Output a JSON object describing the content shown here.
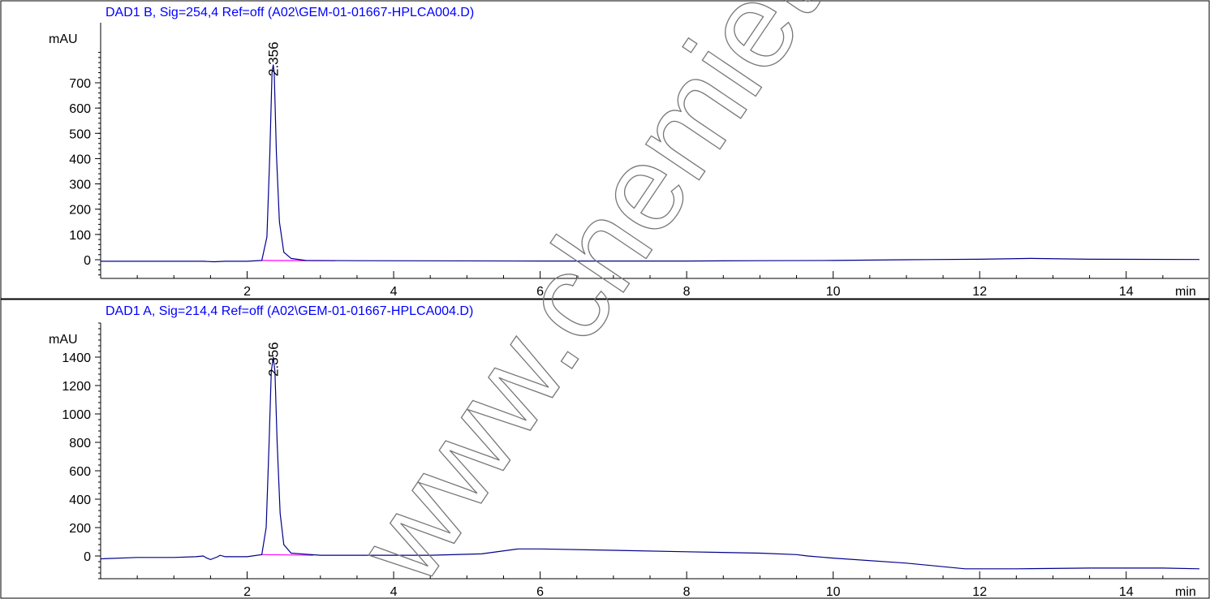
{
  "watermark": "www.chemietek.com",
  "colors": {
    "trace": "#00008b",
    "baseline": "#ff00ff",
    "title": "#0000ff",
    "axis": "#000000"
  },
  "chart_data": [
    {
      "type": "line",
      "title": "DAD1 B, Sig=254,4 Ref=off (A02\\GEM-01-01667-HPLCA004.D)",
      "ylabel": "mAU",
      "xlabel": "min",
      "xlim": [
        0,
        15
      ],
      "ylim": [
        -35,
        890
      ],
      "x_ticks": [
        2,
        4,
        6,
        8,
        10,
        12,
        14
      ],
      "y_ticks": [
        0,
        100,
        200,
        300,
        400,
        500,
        600,
        700
      ],
      "peak_label": "2.356",
      "peak_rt": 2.356,
      "series": [
        {
          "x": [
            0,
            1.2,
            1.4,
            1.55,
            1.7,
            2.0,
            2.2,
            2.27,
            2.31,
            2.34,
            2.356,
            2.37,
            2.4,
            2.44,
            2.5,
            2.6,
            2.8,
            3.5,
            6,
            8,
            9,
            10,
            11,
            12,
            12.7,
            13.5,
            15
          ],
          "y": [
            -6,
            -6,
            -6,
            -8,
            -6,
            -6,
            -3,
            90,
            420,
            740,
            772,
            740,
            420,
            150,
            30,
            5,
            -3,
            -4,
            -5,
            -5,
            -4,
            -3,
            0,
            2,
            5,
            2,
            1
          ]
        }
      ],
      "integration_baseline": {
        "x": [
          2.2,
          3.2
        ],
        "y": [
          -3,
          -4
        ]
      }
    },
    {
      "type": "line",
      "title": "DAD1 A, Sig=214,4 Ref=off (A02\\GEM-01-01667-HPLCA004.D)",
      "ylabel": "mAU",
      "xlabel": "min",
      "xlim": [
        0,
        15
      ],
      "ylim": [
        -120,
        1560
      ],
      "x_ticks": [
        2,
        4,
        6,
        8,
        10,
        12,
        14
      ],
      "y_ticks": [
        0,
        200,
        400,
        600,
        800,
        1000,
        1200,
        1400
      ],
      "peak_label": "2.356",
      "peak_rt": 2.356,
      "series": [
        {
          "x": [
            0,
            0.5,
            1.0,
            1.3,
            1.4,
            1.45,
            1.5,
            1.6,
            1.63,
            1.7,
            2.0,
            2.2,
            2.26,
            2.3,
            2.33,
            2.356,
            2.38,
            2.41,
            2.45,
            2.5,
            2.6,
            3.0,
            4.5,
            5.2,
            5.7,
            6.0,
            7.0,
            8.0,
            9.0,
            9.5,
            9.65,
            10.0,
            11.0,
            11.8,
            12.5,
            13.5,
            14.5,
            15
          ],
          "y": [
            -20,
            -10,
            -10,
            -5,
            0,
            -15,
            -25,
            -5,
            5,
            -5,
            -5,
            10,
            200,
            800,
            1300,
            1400,
            1300,
            800,
            300,
            80,
            20,
            5,
            5,
            15,
            50,
            50,
            40,
            30,
            20,
            10,
            0,
            -15,
            -50,
            -90,
            -90,
            -85,
            -85,
            -90
          ]
        }
      ],
      "integration_baseline": {
        "x": [
          2.2,
          2.9
        ],
        "y": [
          10,
          5
        ]
      }
    }
  ]
}
